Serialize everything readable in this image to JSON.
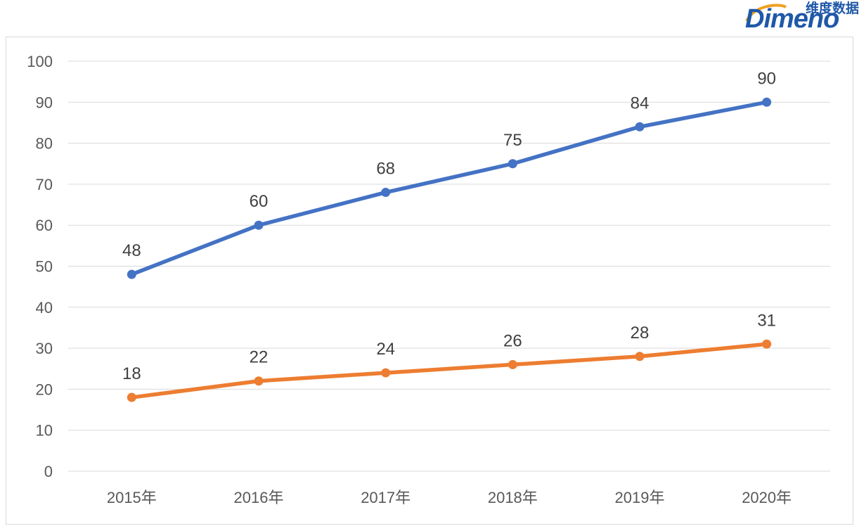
{
  "logo": {
    "cn_text": "维度数据",
    "en_text": "Dimeno"
  },
  "colors": {
    "series_1": "#4472C4",
    "series_2": "#ED7D31",
    "grid": "#d9d9d9",
    "tick_text": "#595959"
  },
  "chart_data": {
    "type": "line",
    "categories": [
      "2015年",
      "2016年",
      "2017年",
      "2018年",
      "2019年",
      "2020年"
    ],
    "series": [
      {
        "values": [
          48,
          60,
          68,
          75,
          84,
          90
        ]
      },
      {
        "values": [
          18,
          22,
          24,
          26,
          28,
          31
        ]
      }
    ],
    "title": "",
    "xlabel": "",
    "ylabel": "",
    "ylim": [
      0,
      100
    ],
    "yticks": [
      0,
      10,
      20,
      30,
      40,
      50,
      60,
      70,
      80,
      90,
      100
    ],
    "grid": true,
    "data_labels": true
  }
}
